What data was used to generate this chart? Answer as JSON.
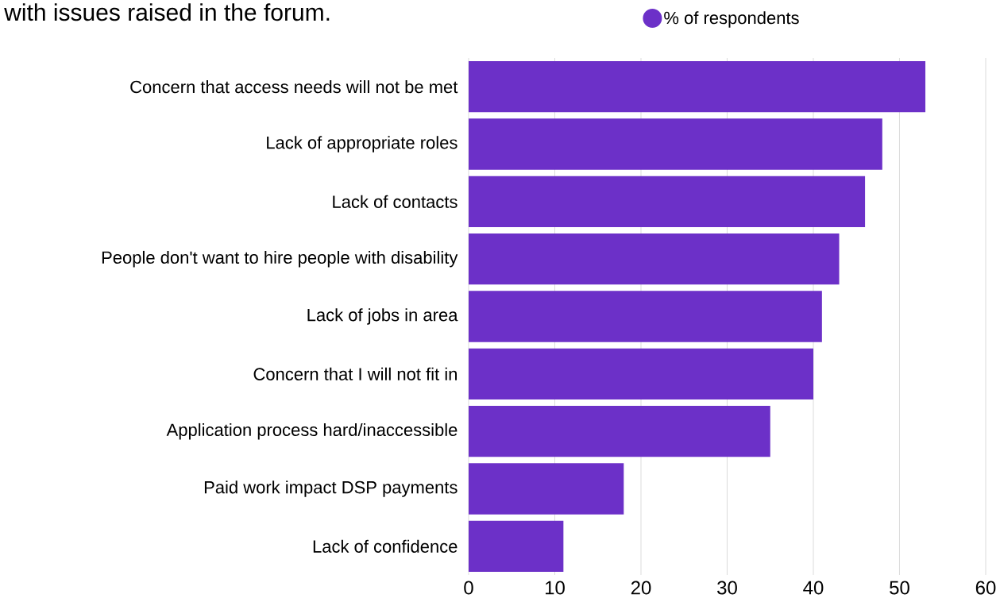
{
  "chart_data": {
    "type": "bar",
    "orientation": "horizontal",
    "title": "with issues raised in the forum.",
    "categories": [
      "Concern that access needs will not be met",
      "Lack of appropriate roles",
      "Lack of contacts",
      "People don't want to hire people with disability",
      "Lack of jobs in area",
      "Concern that I will not fit in",
      "Application process hard/inaccessible",
      "Paid work impact DSP payments",
      "Lack of confidence"
    ],
    "series": [
      {
        "name": "% of respondents",
        "color": "#6c30c8",
        "values": [
          53,
          48,
          46,
          43,
          41,
          40,
          35,
          18,
          11
        ]
      }
    ],
    "xlim": [
      0,
      60
    ],
    "xticks": [
      0,
      10,
      20,
      30,
      40,
      50,
      60
    ],
    "grid": "x",
    "legend": "top"
  }
}
